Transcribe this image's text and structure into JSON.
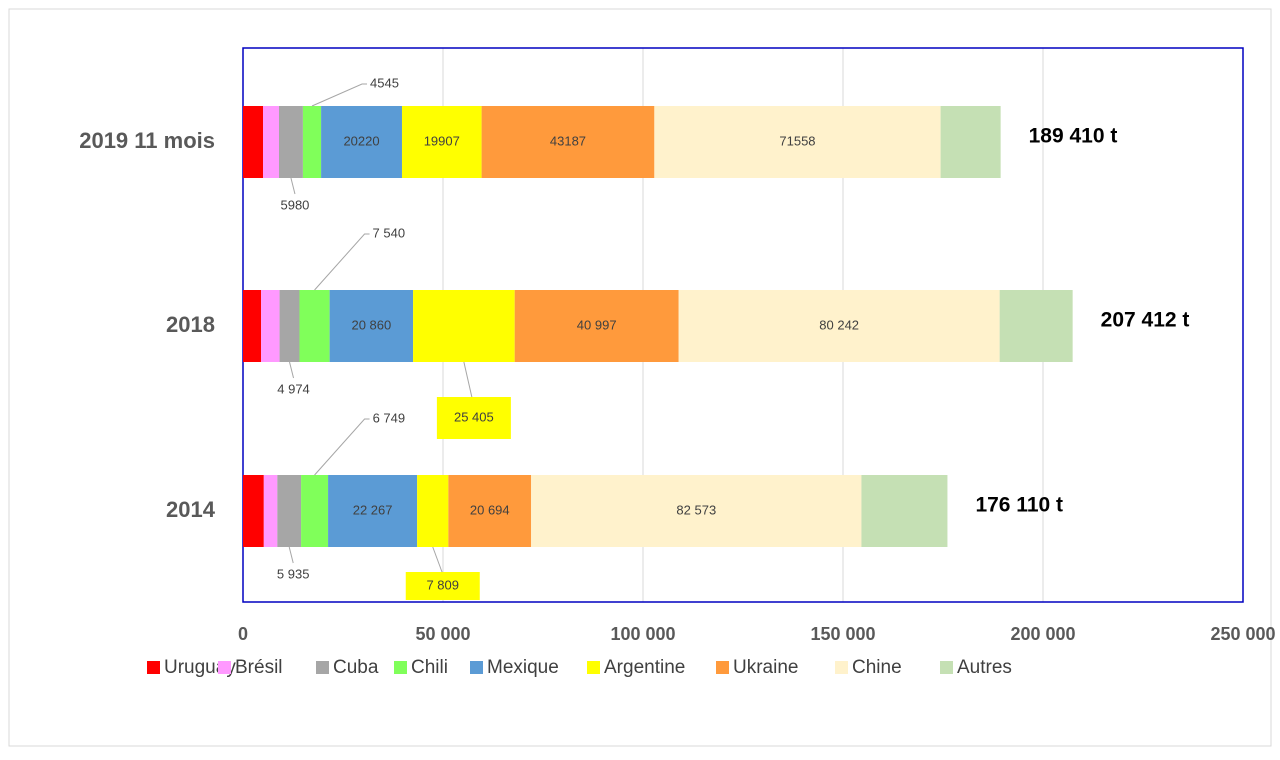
{
  "chart_data": {
    "type": "stacked_barh",
    "categories": [
      "2019 11 mois",
      "2018",
      "2014"
    ],
    "series": [
      {
        "name": "Uruguay",
        "color": "#ff0000",
        "values": [
          5000,
          4500,
          5200
        ],
        "value_labels": [
          null,
          null,
          null
        ]
      },
      {
        "name": "Brésil",
        "color": "#ff99ff",
        "values": [
          4000,
          4644,
          3383
        ],
        "value_labels": [
          null,
          null,
          null
        ]
      },
      {
        "name": "Cuba",
        "color": "#a6a6a6",
        "values": [
          5980,
          4974,
          5935
        ],
        "value_labels": [
          "5980",
          "4 974",
          "5 935"
        ]
      },
      {
        "name": "Chili",
        "color": "#80ff5a",
        "values": [
          4545,
          7540,
          6749
        ],
        "value_labels": [
          "4545",
          "7 540",
          "6 749"
        ]
      },
      {
        "name": "Mexique",
        "color": "#5b9bd5",
        "values": [
          20220,
          20860,
          22267
        ],
        "value_labels": [
          "20220",
          "20 860",
          "22 267"
        ]
      },
      {
        "name": "Argentine",
        "color": "#ffff00",
        "values": [
          19907,
          25405,
          7809
        ],
        "value_labels": [
          "19907",
          "25 405",
          "7 809"
        ]
      },
      {
        "name": "Ukraine",
        "color": "#ff9a3c",
        "values": [
          43187,
          40997,
          20694
        ],
        "value_labels": [
          "43187",
          "40 997",
          "20 694"
        ]
      },
      {
        "name": "Chine",
        "color": "#fff2cc",
        "values": [
          71558,
          80242,
          82573
        ],
        "value_labels": [
          "71558",
          "80 242",
          "82 573"
        ]
      },
      {
        "name": "Autres",
        "color": "#c5e0b4",
        "values": [
          15013,
          18250,
          21500
        ],
        "value_labels": [
          null,
          null,
          null
        ]
      }
    ],
    "totals": [
      189410,
      207412,
      176110
    ],
    "total_labels": [
      "189 410 t",
      "207 412 t",
      "176 110 t"
    ],
    "xlim": [
      0,
      250000
    ],
    "xticks": [
      0,
      {
        "value": 50000,
        "label": "50 000"
      },
      {
        "value": 100000,
        "label": "100 000"
      },
      {
        "value": 150000,
        "label": "150 000"
      },
      {
        "value": 200000,
        "label": "200 000"
      },
      {
        "value": 250000,
        "label": "250 000"
      }
    ],
    "grid": true,
    "legend": "bottom"
  }
}
